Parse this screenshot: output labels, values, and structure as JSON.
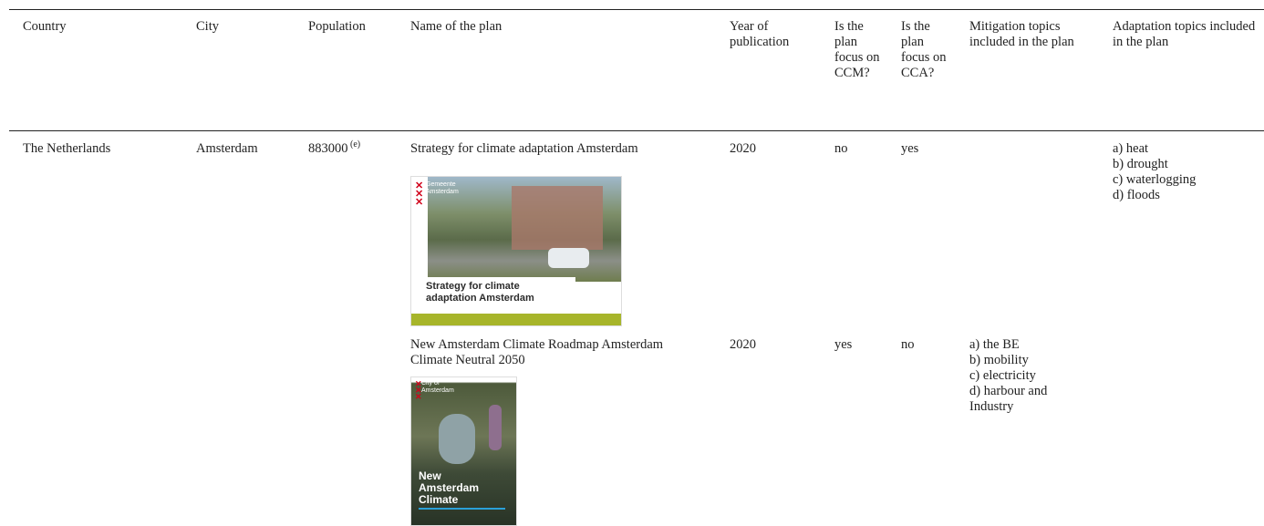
{
  "table": {
    "headers": [
      "Country",
      "City",
      "Population",
      "Name of the plan",
      "Year of publication",
      "Is the plan focus on CCM?",
      "Is the plan focus on CCA?",
      "Mitigation topics included in the plan",
      "Adaptation topics included in the plan"
    ],
    "rows": [
      {
        "country": "The Netherlands",
        "city": "Amsterdam",
        "population": 883000,
        "population_note": "(e)",
        "plans": [
          {
            "name": "Strategy for climate adaptation Amsterdam",
            "year": 2020,
            "ccm": "no",
            "cca": "yes",
            "mitigation": [],
            "adaptation": [
              "a) heat",
              "b) drought",
              "c) waterlogging",
              "d) floods"
            ],
            "cover": {
              "label": "Gemeente Amsterdam",
              "title": "Strategy for climate adaptation Amsterdam"
            }
          },
          {
            "name": "New Amsterdam Climate Roadmap Amsterdam Climate Neutral 2050",
            "year": 2020,
            "ccm": "yes",
            "cca": "no",
            "mitigation": [
              "a) the BE",
              "b) mobility",
              "c) electricity",
              "d) harbour and Industry"
            ],
            "adaptation": [],
            "cover": {
              "label": "City of Amsterdam",
              "title": "New Amsterdam Climate"
            }
          }
        ]
      }
    ]
  }
}
